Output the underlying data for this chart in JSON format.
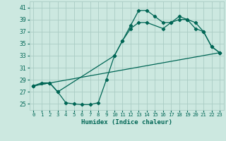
{
  "xlabel": "Humidex (Indice chaleur)",
  "bg_color": "#cce8e0",
  "grid_color": "#aaccc4",
  "line_color": "#006655",
  "xlim": [
    -0.5,
    23.5
  ],
  "ylim": [
    24.0,
    42.0
  ],
  "xticks": [
    0,
    1,
    2,
    3,
    4,
    5,
    6,
    7,
    8,
    9,
    10,
    11,
    12,
    13,
    14,
    15,
    16,
    17,
    18,
    19,
    20,
    21,
    22,
    23
  ],
  "yticks": [
    25,
    27,
    29,
    31,
    33,
    35,
    37,
    39,
    41
  ],
  "line1_x": [
    0,
    1,
    2,
    3,
    4,
    5,
    6,
    7,
    8,
    9,
    10,
    11,
    12,
    13,
    14,
    15,
    16,
    17,
    18,
    19,
    20,
    21,
    22,
    23
  ],
  "line1_y": [
    28,
    28.5,
    28.5,
    27,
    25.2,
    25.0,
    24.9,
    24.9,
    25.2,
    29.0,
    33,
    35.5,
    38.0,
    40.5,
    40.5,
    39.5,
    38.5,
    38.5,
    39.5,
    39.0,
    38.5,
    37.0,
    34.5,
    33.5
  ],
  "line2_x": [
    0,
    2,
    3,
    10,
    11,
    12,
    13,
    14,
    16,
    17,
    18,
    19,
    20,
    21,
    22,
    23
  ],
  "line2_y": [
    28,
    28.5,
    27,
    33,
    35.5,
    37.5,
    38.5,
    38.5,
    37.5,
    38.5,
    39.0,
    39.0,
    37.5,
    37.0,
    34.5,
    33.5
  ],
  "line3_x": [
    0,
    23
  ],
  "line3_y": [
    28,
    33.5
  ]
}
